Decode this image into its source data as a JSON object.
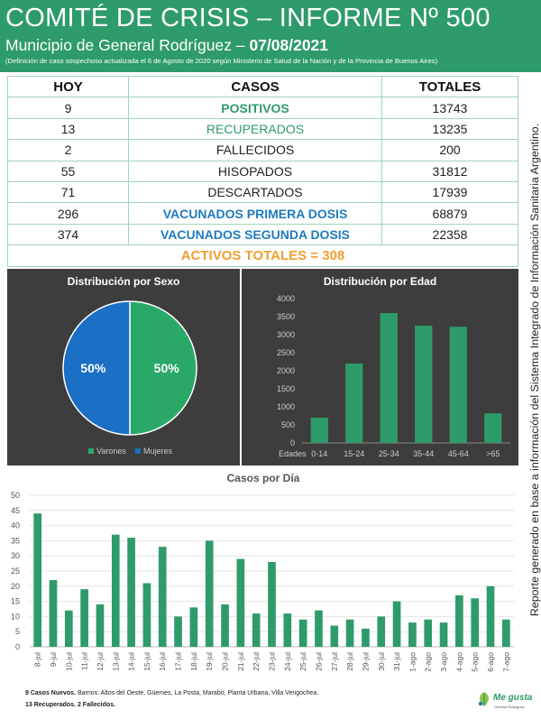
{
  "header": {
    "title": "COMITÉ DE CRISIS – INFORME Nº 500",
    "subtitle_prefix": "Municipio de General Rodríguez – ",
    "subtitle_date": "07/08/2021",
    "note": "(Definición de caso sospechoso actualizada el 6 de Agosto de 2020 según Ministerio de Salud de la Nación y de la Provincia de Buenos Aires)"
  },
  "table": {
    "headers": [
      "HOY",
      "CASOS",
      "TOTALES"
    ],
    "rows": [
      {
        "hoy": "9",
        "casos": "POSITIVOS",
        "totales": "13743"
      },
      {
        "hoy": "13",
        "casos": "RECUPERADOS",
        "totales": "13235"
      },
      {
        "hoy": "2",
        "casos": "FALLECIDOS",
        "totales": "200"
      },
      {
        "hoy": "55",
        "casos": "HISOPADOS",
        "totales": "31812"
      },
      {
        "hoy": "71",
        "casos": "DESCARTADOS",
        "totales": "17939"
      },
      {
        "hoy": "296",
        "casos": "VACUNADOS PRIMERA DOSIS",
        "totales": "68879"
      },
      {
        "hoy": "374",
        "casos": "VACUNADOS SEGUNDA DOSIS",
        "totales": "22358"
      }
    ],
    "activos": "ACTIVOS TOTALES = 308"
  },
  "colors": {
    "green": "#2e9b6a",
    "blue": "#1f7bbf",
    "orange": "#f0a030",
    "panel_bg": "#3d3d3d",
    "bar_green": "#2e9b6a",
    "pie_green": "#2aa868",
    "pie_blue": "#1b6fc4"
  },
  "chart_data": [
    {
      "type": "pie",
      "title": "Distribución por Sexo",
      "labels": [
        "Varones",
        "Mujeres"
      ],
      "values": [
        50,
        50
      ],
      "value_labels": [
        "50%",
        "50%"
      ],
      "legend": "bottom"
    },
    {
      "type": "bar",
      "title": "Distribución por Edad",
      "x_axis_label": "Edades",
      "categories": [
        "0-14",
        "15-24",
        "25-34",
        "35-44",
        "45-64",
        ">65"
      ],
      "values": [
        700,
        2200,
        3600,
        3250,
        3220,
        820
      ],
      "ylim": [
        0,
        4000
      ],
      "yticks": [
        "0",
        "500",
        "1000",
        "1500",
        "2000",
        "2500",
        "3000",
        "3500",
        "4000"
      ],
      "grid": false
    },
    {
      "type": "bar",
      "title": "Casos por Día",
      "categories": [
        "8-jul",
        "9-jul",
        "10-jul",
        "11-jul",
        "12-jul",
        "13-jul",
        "14-jul",
        "15-jul",
        "16-jul",
        "17-jul",
        "18-jul",
        "19-jul",
        "20-jul",
        "21-jul",
        "22-jul",
        "23-jul",
        "24-jul",
        "25-jul",
        "26-jul",
        "27-jul",
        "28-jul",
        "29-jul",
        "30-jul",
        "31-jul",
        "1-ago",
        "2-ago",
        "3-ago",
        "4-ago",
        "5-ago",
        "6-ago",
        "7-ago"
      ],
      "values": [
        44,
        22,
        12,
        19,
        14,
        37,
        36,
        21,
        33,
        10,
        13,
        35,
        14,
        29,
        11,
        28,
        11,
        9,
        12,
        7,
        9,
        6,
        10,
        15,
        8,
        9,
        8,
        17,
        16,
        20,
        9
      ],
      "ylim": [
        0,
        50
      ],
      "yticks": [
        "0",
        "5",
        "10",
        "15",
        "20",
        "25",
        "30",
        "35",
        "40",
        "45",
        "50"
      ],
      "grid": true
    }
  ],
  "side_note": "Reporte generado en base a información del Sistema Integrado de Información Sanitaria Argentino.",
  "footer": {
    "line1_bold": "9 Casos Nuevos.",
    "line1_rest": " Barrios: Altos del Oeste, Güemes, La Posta, Marabó, Planta Urbana, Villa Vengochea.",
    "line2": "13 Recuperados. 2 Fallecidos."
  },
  "logo": {
    "brand": "Me gusta",
    "sub": "General Rodríguez",
    "icon": "leaf-icon"
  }
}
